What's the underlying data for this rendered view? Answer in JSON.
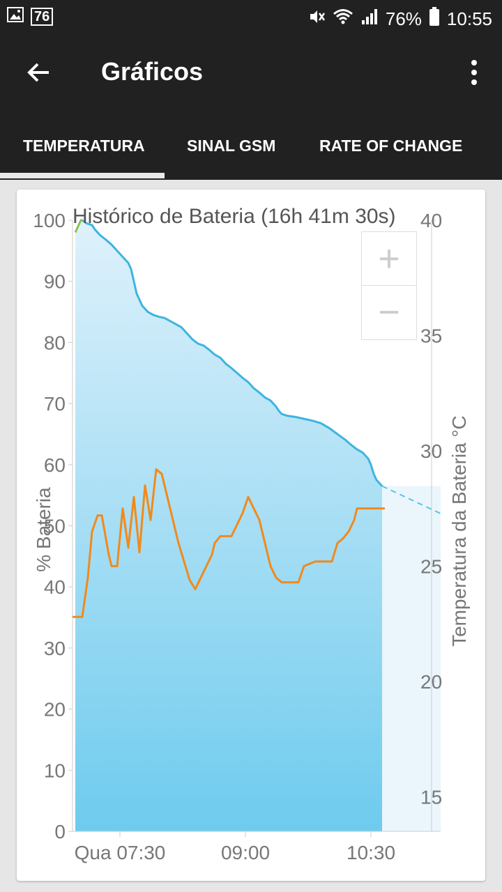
{
  "status_bar": {
    "notification_badge": "76",
    "battery_pct": "76%",
    "time": "10:55",
    "icons": [
      "image-icon",
      "mute-icon",
      "wifi-icon",
      "signal-icon",
      "battery-icon"
    ]
  },
  "toolbar": {
    "title": "Gráficos"
  },
  "tabs": [
    {
      "label": "TEMPERATURA",
      "selected": true
    },
    {
      "label": "SINAL GSM",
      "selected": false
    },
    {
      "label": "RATE OF CHANGE",
      "selected": false
    }
  ],
  "zoom": {
    "plus": "+",
    "minus": "−"
  },
  "chart_data": {
    "type": "line",
    "title": "Histórico de Bateria (16h 41m 30s)",
    "ylabel": "% Bateria",
    "y2label": "Temperatura da Bateria °C",
    "ylim": [
      0,
      100
    ],
    "y2lim": [
      13.5,
      40
    ],
    "yticks": [
      0,
      10,
      20,
      30,
      40,
      50,
      60,
      70,
      80,
      90,
      100
    ],
    "y2ticks": [
      15,
      20,
      25,
      30,
      35,
      40
    ],
    "xticks": [
      "Qua 07:30",
      "09:00",
      "10:30"
    ],
    "xtick_minutes": [
      450,
      540,
      630
    ],
    "xlim": [
      416,
      680
    ],
    "colors": {
      "battery": "#3db4e0",
      "temperature": "#f08a1c",
      "projection": "#5bc2e6",
      "charging": "#8bc34a",
      "fill_top": "#dff1fb",
      "fill_bottom": "#6ecbee"
    },
    "battery_charging": {
      "x": [
        418,
        420,
        422,
        423
      ],
      "y": [
        98,
        99,
        100,
        100
      ]
    },
    "battery": {
      "x": [
        423,
        426,
        430,
        432,
        436,
        440,
        444,
        448,
        452,
        456,
        458,
        460,
        462,
        466,
        470,
        474,
        478,
        482,
        486,
        490,
        494,
        498,
        502,
        506,
        510,
        514,
        518,
        522,
        526,
        530,
        534,
        538,
        542,
        546,
        550,
        554,
        558,
        562,
        564,
        566,
        570,
        576,
        582,
        588,
        594,
        600,
        606,
        612,
        616,
        620,
        624,
        628,
        630,
        632,
        634,
        636,
        638
      ],
      "y": [
        100,
        99.5,
        99.2,
        98.5,
        97.5,
        96.8,
        96,
        95,
        94,
        93,
        92,
        90,
        88,
        86,
        85,
        84.5,
        84.2,
        84,
        83.5,
        83,
        82.5,
        81.5,
        80.5,
        79.8,
        79.5,
        78.8,
        78,
        77.5,
        76.5,
        75.8,
        75,
        74.2,
        73.5,
        72.5,
        71.8,
        71,
        70.5,
        69.5,
        68.8,
        68.3,
        68,
        67.8,
        67.5,
        67.2,
        66.8,
        66,
        65,
        64,
        63.2,
        62.5,
        62,
        61,
        60,
        58.5,
        57.5,
        57,
        56.5
      ]
    },
    "projection": {
      "x": [
        638,
        680
      ],
      "y": [
        56.5,
        52
      ]
    },
    "temperature": {
      "x": [
        416,
        423,
        427,
        430,
        434,
        437,
        442,
        444,
        448,
        452,
        456,
        460,
        464,
        468,
        472,
        476,
        480,
        484,
        488,
        492,
        496,
        500,
        504,
        508,
        512,
        516,
        518,
        522,
        526,
        530,
        534,
        538,
        542,
        546,
        550,
        554,
        558,
        562,
        566,
        570,
        574,
        578,
        582,
        586,
        590,
        594,
        598,
        602,
        606,
        610,
        614,
        618,
        620,
        622,
        626,
        630,
        634,
        636,
        638,
        640
      ],
      "y": [
        22.8,
        22.8,
        24.5,
        26.5,
        27.2,
        27.2,
        25.5,
        25.0,
        25.0,
        27.5,
        25.8,
        28.0,
        25.6,
        28.5,
        27.0,
        29.2,
        29.0,
        28.0,
        27.0,
        26.0,
        25.2,
        24.4,
        24.0,
        24.5,
        25.0,
        25.5,
        26.0,
        26.3,
        26.3,
        26.3,
        26.8,
        27.3,
        28.0,
        27.5,
        27.0,
        26.0,
        25.0,
        24.5,
        24.3,
        24.3,
        24.3,
        24.3,
        25.0,
        25.1,
        25.2,
        25.2,
        25.2,
        25.2,
        26.0,
        26.2,
        26.5,
        27.0,
        27.5,
        27.5,
        27.5,
        27.5,
        27.5,
        27.5,
        27.5,
        27.5
      ]
    }
  }
}
